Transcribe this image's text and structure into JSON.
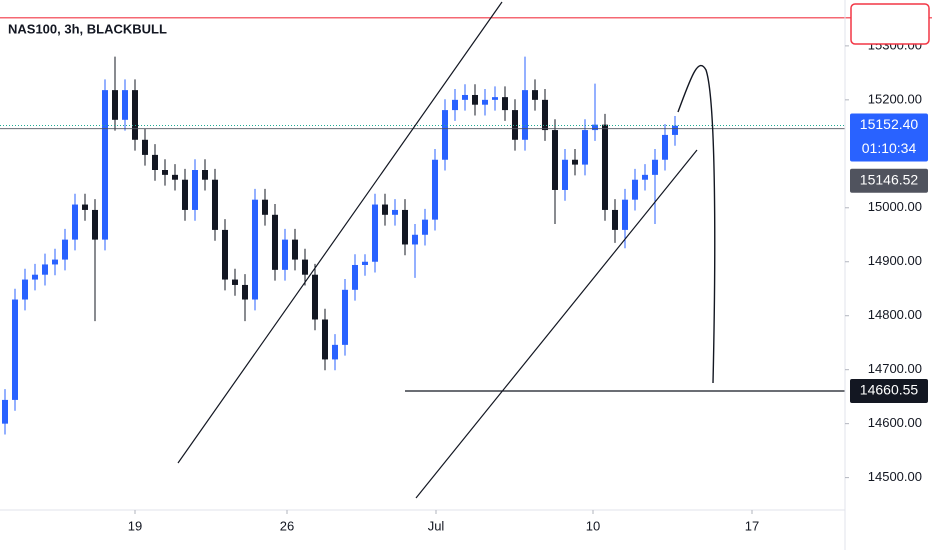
{
  "chart_data": {
    "type": "candlestick",
    "title": "NAS100, 3h, BLACKBULL",
    "up_color": "#2962ff",
    "down_color": "#131722",
    "open": [
      14600,
      14644,
      14830,
      14867,
      14876,
      14895,
      14904,
      14941,
      15006,
      14996,
      14941,
      15218,
      15163,
      15218,
      15126,
      15098,
      15070,
      15061,
      15052,
      14996,
      15070,
      15052,
      14959,
      14867,
      14857,
      14830,
      15015,
      14987,
      14885,
      14941,
      14904,
      14876,
      14793,
      14719,
      14746,
      14848,
      14894,
      14900,
      15006,
      14987,
      14996,
      14932,
      14950,
      14978,
      15089,
      15181,
      15200,
      15209,
      15191,
      15200,
      15205,
      15181,
      15126,
      15218,
      15200,
      15144,
      15033,
      15089,
      15080,
      15144,
      15154,
      14996,
      14959,
      15015,
      15052,
      15061,
      15089,
      15135
    ],
    "high": [
      14664,
      14850,
      14887,
      14896,
      14915,
      14924,
      14961,
      15026,
      15026,
      15016,
      15238,
      15280,
      15238,
      15238,
      15146,
      15118,
      15090,
      15081,
      15072,
      15090,
      15090,
      15072,
      14979,
      14887,
      14877,
      15035,
      15035,
      15007,
      14961,
      14961,
      14924,
      14896,
      14813,
      14766,
      14868,
      14914,
      14914,
      15026,
      15026,
      15016,
      15016,
      14970,
      14998,
      15109,
      15201,
      15220,
      15229,
      15229,
      15220,
      15225,
      15225,
      15201,
      15280,
      15238,
      15220,
      15164,
      15109,
      15109,
      15164,
      15230,
      15174,
      15016,
      15035,
      15072,
      15081,
      15109,
      15155,
      15170
    ],
    "low": [
      14580,
      14624,
      14810,
      14847,
      14856,
      14875,
      14884,
      14921,
      14976,
      14790,
      14921,
      15143,
      15143,
      15106,
      15078,
      15050,
      15041,
      15032,
      14976,
      14976,
      15032,
      14939,
      14847,
      14837,
      14790,
      14810,
      14967,
      14865,
      14865,
      14884,
      14856,
      14773,
      14699,
      14699,
      14726,
      14828,
      14874,
      14880,
      14967,
      14967,
      14912,
      14870,
      14930,
      14958,
      15069,
      15161,
      15180,
      15171,
      15171,
      15180,
      15161,
      15106,
      15106,
      15180,
      15124,
      14970,
      15013,
      15060,
      15060,
      15124,
      14976,
      14935,
      14925,
      14995,
      15032,
      14970,
      15069,
      15115
    ],
    "close": [
      14644,
      14830,
      14867,
      14876,
      14895,
      14904,
      14941,
      15006,
      14996,
      14941,
      15218,
      15163,
      15218,
      15126,
      15098,
      15070,
      15061,
      15052,
      14996,
      15070,
      15052,
      14959,
      14867,
      14857,
      14830,
      15015,
      14987,
      14885,
      14941,
      14904,
      14876,
      14793,
      14719,
      14746,
      14848,
      14894,
      14900,
      15006,
      14987,
      14996,
      14932,
      14950,
      14978,
      15089,
      15181,
      15200,
      15209,
      15191,
      15200,
      15205,
      15181,
      15126,
      15218,
      15200,
      15144,
      15033,
      15089,
      15080,
      15144,
      15154,
      14996,
      14959,
      15015,
      15052,
      15061,
      15089,
      15135,
      15152
    ],
    "xlim": [
      0,
      84.5
    ],
    "xticks": [
      {
        "value": 13.5,
        "label": "19"
      },
      {
        "value": 28.7,
        "label": "26"
      },
      {
        "value": 43.6,
        "label": "Jul"
      },
      {
        "value": 59.3,
        "label": "10"
      },
      {
        "value": 75.2,
        "label": "17"
      }
    ],
    "ylim": [
      14440,
      15385
    ],
    "yticks": [
      {
        "value": 15300,
        "label": "15300.00"
      },
      {
        "value": 15200,
        "label": "15200.00"
      },
      {
        "value": 15000,
        "label": "15000.00"
      },
      {
        "value": 14900,
        "label": "14900.00"
      },
      {
        "value": 14800,
        "label": "14800.00"
      },
      {
        "value": 14700,
        "label": "14700.00"
      },
      {
        "value": 14600,
        "label": "14600.00"
      },
      {
        "value": 14500,
        "label": "14500.00"
      }
    ],
    "alert_level": 15352,
    "last_price": {
      "value": 15152.4,
      "label": "15152.40",
      "countdown": "01:10:34",
      "color": "#2962ff"
    },
    "prev_price": {
      "value": 15146.52,
      "label": "15146.52",
      "color": "#50535e"
    },
    "target": {
      "value": 14660.55,
      "label": "14660.55",
      "color": "#131722"
    }
  }
}
